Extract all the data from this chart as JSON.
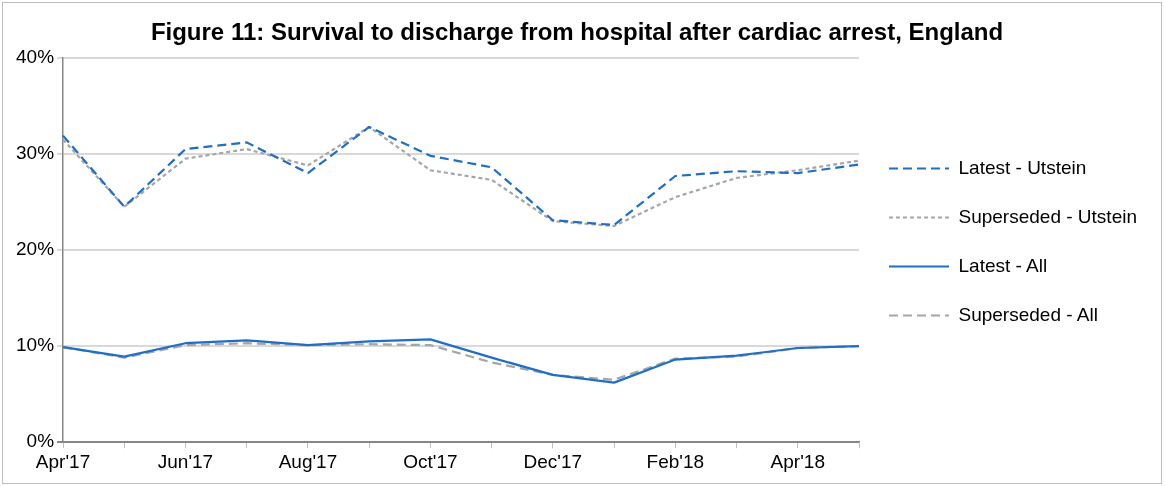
{
  "chart_data": {
    "type": "line",
    "title": "Figure 11: Survival to discharge from hospital after cardiac arrest, England",
    "categories": [
      "Apr'17",
      null,
      "Jun'17",
      null,
      "Aug'17",
      null,
      "Oct'17",
      null,
      "Dec'17",
      null,
      "Feb'18",
      null,
      "Apr'18",
      null
    ],
    "series": [
      {
        "name": "Latest - Utstein",
        "color": "#1f6fc6",
        "line_style": "dashed",
        "values": [
          31.9,
          24.5,
          30.5,
          31.2,
          28.0,
          32.8,
          29.8,
          28.6,
          23.1,
          22.6,
          27.7,
          28.2,
          28.0,
          28.9
        ]
      },
      {
        "name": "Superseded - Utstein",
        "color": "#a6a6a6",
        "line_style": "dotted",
        "values": [
          31.5,
          24.5,
          29.5,
          30.5,
          28.8,
          32.8,
          28.3,
          27.3,
          23.0,
          22.5,
          25.5,
          27.5,
          28.3,
          29.3
        ]
      },
      {
        "name": "Latest - All",
        "color": "#1f6fc6",
        "line_style": "solid",
        "values": [
          9.9,
          8.9,
          10.3,
          10.6,
          10.1,
          10.5,
          10.7,
          8.8,
          7.0,
          6.2,
          8.6,
          9.0,
          9.8,
          10.0
        ]
      },
      {
        "name": "Superseded - All",
        "color": "#a6a6a6",
        "line_style": "dashed",
        "values": [
          9.9,
          8.8,
          10.1,
          10.3,
          10.1,
          10.2,
          10.1,
          8.3,
          7.0,
          6.5,
          8.7,
          8.9,
          9.8,
          10.0
        ]
      }
    ],
    "ylim": [
      0,
      40
    ],
    "yticks": [
      {
        "value": 0,
        "label": "0%"
      },
      {
        "value": 10,
        "label": "10%"
      },
      {
        "value": 20,
        "label": "20%"
      },
      {
        "value": 30,
        "label": "30%"
      },
      {
        "value": 40,
        "label": "40%"
      }
    ],
    "grid": "y",
    "legend": "right",
    "marker": "none"
  }
}
